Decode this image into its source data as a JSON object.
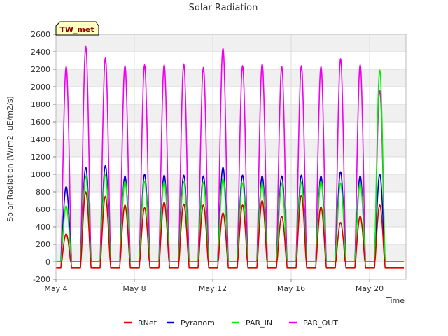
{
  "chart_data": {
    "type": "line",
    "title": "Solar Radiation",
    "site_badge": "TW_met",
    "xlabel": "Time",
    "ylabel": "Solar Radiation (W/m2, uE/m2/s)",
    "ylim": [
      -200,
      2600
    ],
    "yticks": [
      -200,
      0,
      200,
      400,
      600,
      800,
      1000,
      1200,
      1400,
      1600,
      1800,
      2000,
      2200,
      2400,
      2600
    ],
    "xlim": [
      "2024-05-04T00:00",
      "2024-05-21T18:00"
    ],
    "xticks": [
      {
        "value": "2024-05-04",
        "label": "May 4"
      },
      {
        "value": "2024-05-08",
        "label": "May 8"
      },
      {
        "value": "2024-05-12",
        "label": "May 12"
      },
      {
        "value": "2024-05-16",
        "label": "May 16"
      },
      {
        "value": "2024-05-20",
        "label": "May 20"
      }
    ],
    "grid": true,
    "legend_position": "bottom",
    "series": [
      {
        "name": "RNet",
        "color": "#dd0000",
        "night_value": -70,
        "days": [
          {
            "date": "2024-05-04",
            "peak": 320
          },
          {
            "date": "2024-05-05",
            "peak": 800
          },
          {
            "date": "2024-05-06",
            "peak": 750
          },
          {
            "date": "2024-05-07",
            "peak": 650
          },
          {
            "date": "2024-05-08",
            "peak": 620
          },
          {
            "date": "2024-05-09",
            "peak": 680
          },
          {
            "date": "2024-05-10",
            "peak": 660
          },
          {
            "date": "2024-05-11",
            "peak": 650
          },
          {
            "date": "2024-05-12",
            "peak": 560
          },
          {
            "date": "2024-05-13",
            "peak": 650
          },
          {
            "date": "2024-05-14",
            "peak": 700
          },
          {
            "date": "2024-05-15",
            "peak": 520
          },
          {
            "date": "2024-05-16",
            "peak": 760
          },
          {
            "date": "2024-05-17",
            "peak": 630
          },
          {
            "date": "2024-05-18",
            "peak": 450
          },
          {
            "date": "2024-05-19",
            "peak": 520
          },
          {
            "date": "2024-05-20",
            "peak": 650
          }
        ]
      },
      {
        "name": "Pyranom",
        "color": "#0000cc",
        "night_value": 0,
        "days": [
          {
            "date": "2024-05-04",
            "peak": 860
          },
          {
            "date": "2024-05-05",
            "peak": 1080
          },
          {
            "date": "2024-05-06",
            "peak": 1100
          },
          {
            "date": "2024-05-07",
            "peak": 980
          },
          {
            "date": "2024-05-08",
            "peak": 1000
          },
          {
            "date": "2024-05-09",
            "peak": 990
          },
          {
            "date": "2024-05-10",
            "peak": 990
          },
          {
            "date": "2024-05-11",
            "peak": 980
          },
          {
            "date": "2024-05-12",
            "peak": 1080
          },
          {
            "date": "2024-05-13",
            "peak": 990
          },
          {
            "date": "2024-05-14",
            "peak": 980
          },
          {
            "date": "2024-05-15",
            "peak": 980
          },
          {
            "date": "2024-05-16",
            "peak": 990
          },
          {
            "date": "2024-05-17",
            "peak": 980
          },
          {
            "date": "2024-05-18",
            "peak": 1030
          },
          {
            "date": "2024-05-19",
            "peak": 980
          },
          {
            "date": "2024-05-20",
            "peak": 1000
          }
        ]
      },
      {
        "name": "PAR_IN",
        "color": "#00ee00",
        "night_value": 0,
        "days": [
          {
            "date": "2024-05-04",
            "peak": 640
          },
          {
            "date": "2024-05-05",
            "peak": 980
          },
          {
            "date": "2024-05-06",
            "peak": 1000
          },
          {
            "date": "2024-05-07",
            "peak": 920
          },
          {
            "date": "2024-05-08",
            "peak": 920
          },
          {
            "date": "2024-05-09",
            "peak": 920
          },
          {
            "date": "2024-05-10",
            "peak": 920
          },
          {
            "date": "2024-05-11",
            "peak": 910
          },
          {
            "date": "2024-05-12",
            "peak": 950
          },
          {
            "date": "2024-05-13",
            "peak": 900
          },
          {
            "date": "2024-05-14",
            "peak": 900
          },
          {
            "date": "2024-05-15",
            "peak": 900
          },
          {
            "date": "2024-05-16",
            "peak": 910
          },
          {
            "date": "2024-05-17",
            "peak": 920
          },
          {
            "date": "2024-05-18",
            "peak": 900
          },
          {
            "date": "2024-05-19",
            "peak": 900
          },
          {
            "date": "2024-05-20",
            "peak": 2190
          }
        ]
      },
      {
        "name": "PAR_OUT",
        "color": "#ee00ee",
        "night_value": 0,
        "days": [
          {
            "date": "2024-05-04",
            "peak": 2230
          },
          {
            "date": "2024-05-05",
            "peak": 2460
          },
          {
            "date": "2024-05-06",
            "peak": 2330
          },
          {
            "date": "2024-05-07",
            "peak": 2240
          },
          {
            "date": "2024-05-08",
            "peak": 2250
          },
          {
            "date": "2024-05-09",
            "peak": 2250
          },
          {
            "date": "2024-05-10",
            "peak": 2260
          },
          {
            "date": "2024-05-11",
            "peak": 2220
          },
          {
            "date": "2024-05-12",
            "peak": 2440
          },
          {
            "date": "2024-05-13",
            "peak": 2240
          },
          {
            "date": "2024-05-14",
            "peak": 2260
          },
          {
            "date": "2024-05-15",
            "peak": 2230
          },
          {
            "date": "2024-05-16",
            "peak": 2240
          },
          {
            "date": "2024-05-17",
            "peak": 2230
          },
          {
            "date": "2024-05-18",
            "peak": 2320
          },
          {
            "date": "2024-05-19",
            "peak": 2250
          },
          {
            "date": "2024-05-20",
            "peak": 1960
          }
        ]
      }
    ]
  }
}
